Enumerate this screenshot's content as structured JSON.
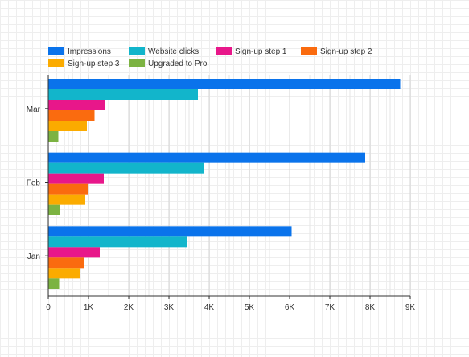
{
  "chart_data": {
    "type": "bar",
    "orientation": "horizontal",
    "title": "",
    "xlabel": "",
    "ylabel": "",
    "legend_position": "top-left",
    "grid": true,
    "xlim": [
      0,
      9000
    ],
    "x_ticks": [
      0,
      1000,
      2000,
      3000,
      4000,
      5000,
      6000,
      7000,
      8000,
      9000
    ],
    "x_tick_labels": [
      "0",
      "1K",
      "2K",
      "3K",
      "4K",
      "5K",
      "6K",
      "7K",
      "8K",
      "9K"
    ],
    "categories": [
      "Mar",
      "Feb",
      "Jan"
    ],
    "series": [
      {
        "name": "Impressions",
        "color": "#0a73eb",
        "values": [
          8750,
          7880,
          6050
        ]
      },
      {
        "name": "Website clicks",
        "color": "#12b5cb",
        "values": [
          3720,
          3860,
          3440
        ]
      },
      {
        "name": "Sign-up step 1",
        "color": "#e8178a",
        "values": [
          1400,
          1380,
          1280
        ]
      },
      {
        "name": "Sign-up step 2",
        "color": "#fa6b0f",
        "values": [
          1150,
          1000,
          900
        ]
      },
      {
        "name": "Sign-up step 3",
        "color": "#fbab00",
        "values": [
          960,
          920,
          780
        ]
      },
      {
        "name": "Upgraded to Pro",
        "color": "#7cb342",
        "values": [
          250,
          290,
          270
        ]
      }
    ]
  }
}
